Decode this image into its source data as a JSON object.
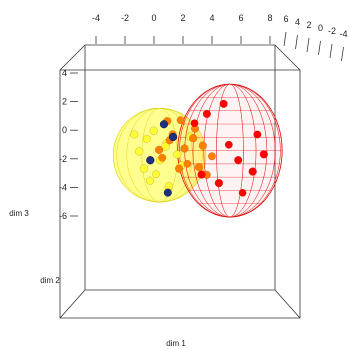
{
  "chart_data": {
    "type": "scatter",
    "projection": "3d",
    "title": "",
    "axes": {
      "x": {
        "label": "dim 1",
        "range": [
          -4,
          8
        ],
        "ticks": [
          "-4",
          "-2",
          "0",
          "2",
          "4",
          "6",
          "8"
        ]
      },
      "y": {
        "label": "dim 2",
        "range": [
          -4,
          6
        ],
        "ticks": [
          "6",
          "4",
          "2",
          "0",
          "-2",
          "-4"
        ]
      },
      "z": {
        "label": "dim 3",
        "range": [
          -6,
          4
        ],
        "ticks": [
          "4",
          "2",
          "0",
          "-2",
          "-4",
          "-6"
        ]
      }
    },
    "bounding_box": true,
    "legend": "none",
    "groups": [
      {
        "color": "#ffff33",
        "ellipsoid": "solid",
        "points": [
          [
            -1.2,
            0.5,
            -1.8
          ],
          [
            -0.6,
            -0.4,
            -0.9
          ],
          [
            0.3,
            0.2,
            -2.4
          ],
          [
            -0.9,
            1.0,
            -3.0
          ],
          [
            0.8,
            -0.6,
            -1.2
          ],
          [
            -0.2,
            0.9,
            -0.4
          ],
          [
            1.5,
            0.3,
            -2.0
          ],
          [
            0.1,
            -1.1,
            -3.3
          ],
          [
            -1.5,
            -0.2,
            -0.6
          ],
          [
            0.6,
            1.2,
            -1.5
          ],
          [
            1.9,
            -0.8,
            -2.7
          ],
          [
            -0.4,
            0.0,
            -3.8
          ],
          [
            2.4,
            0.6,
            -0.8
          ],
          [
            0.9,
            0.4,
            -4.2
          ]
        ]
      },
      {
        "color": "#ff7f00",
        "ellipsoid": "none",
        "points": [
          [
            1.2,
            0.0,
            -0.6
          ],
          [
            2.0,
            0.5,
            -1.6
          ],
          [
            0.5,
            -0.5,
            -2.2
          ],
          [
            2.8,
            -0.3,
            -0.2
          ],
          [
            1.6,
            0.8,
            -3.0
          ],
          [
            3.3,
            0.4,
            -1.4
          ],
          [
            0.8,
            0.2,
            0.3
          ],
          [
            2.3,
            -0.9,
            -2.6
          ],
          [
            3.6,
            0.1,
            -3.4
          ],
          [
            1.0,
            -0.2,
            -1.0
          ],
          [
            2.6,
            0.7,
            -0.9
          ],
          [
            4.0,
            -0.4,
            -2.1
          ],
          [
            1.8,
            -0.6,
            0.4
          ],
          [
            3.0,
            0.9,
            -2.9
          ],
          [
            0.2,
            0.6,
            -1.7
          ]
        ]
      },
      {
        "color": "#ff0000",
        "ellipsoid": "wireframe",
        "points": [
          [
            3.6,
            0.2,
            0.8
          ],
          [
            5.2,
            -0.5,
            -1.3
          ],
          [
            6.8,
            0.7,
            -3.2
          ],
          [
            4.4,
            0.9,
            -4.0
          ],
          [
            7.2,
            -0.3,
            -0.6
          ],
          [
            5.8,
            0.4,
            -2.4
          ],
          [
            2.8,
            -0.8,
            0.2
          ],
          [
            6.2,
            -0.9,
            -4.6
          ],
          [
            4.8,
            0.0,
            1.5
          ],
          [
            3.2,
            0.6,
            -3.4
          ],
          [
            7.6,
            0.5,
            -2.0
          ]
        ]
      },
      {
        "color": "#1f2f80",
        "ellipsoid": "none",
        "points": [
          [
            0.6,
            -0.2,
            0.1
          ],
          [
            1.2,
            0.4,
            -0.8
          ],
          [
            -0.4,
            0.3,
            -2.4
          ],
          [
            0.9,
            -0.6,
            -4.6
          ]
        ]
      }
    ]
  }
}
